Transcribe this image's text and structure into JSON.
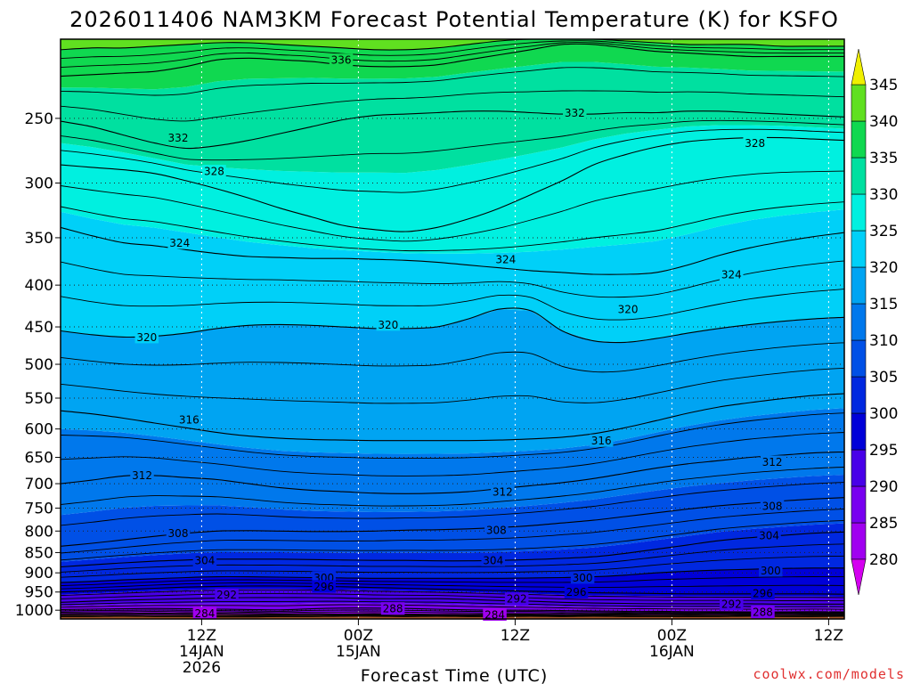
{
  "chart_data": {
    "type": "heatmap",
    "title": "2026011406 NAM3KM Forecast Potential Temperature (K) for KSFO",
    "xlabel": "Forecast Time (UTC)",
    "ylabel": "",
    "x_range_hours": [
      -3,
      47
    ],
    "y_scale": "log",
    "y_range": [
      200,
      1025
    ],
    "y_ticks": [
      250,
      300,
      350,
      400,
      450,
      500,
      550,
      600,
      650,
      700,
      750,
      800,
      850,
      900,
      950,
      1000
    ],
    "y_tick_labels": [
      "250",
      "300",
      "350",
      "400",
      "450",
      "500",
      "550",
      "600",
      "650",
      "700",
      "750",
      "800",
      "850",
      "900",
      "950",
      "1000"
    ],
    "x_ticks": [
      {
        "hour": 6,
        "lines": [
          "12Z",
          "14JAN",
          "2026"
        ]
      },
      {
        "hour": 16,
        "lines": [
          "00Z",
          "15JAN"
        ]
      },
      {
        "hour": 26,
        "lines": [
          "12Z"
        ]
      },
      {
        "hour": 36,
        "lines": [
          "00Z",
          "16JAN"
        ]
      },
      {
        "hour": 46,
        "lines": [
          "12Z"
        ]
      }
    ],
    "vertical_gridlines_hours": [
      6,
      16,
      26,
      36,
      46
    ],
    "grid": true,
    "colorbar": {
      "levels": [
        280,
        285,
        290,
        295,
        300,
        305,
        310,
        315,
        320,
        325,
        330,
        335,
        340,
        345
      ],
      "labels": [
        "280",
        "285",
        "290",
        "295",
        "300",
        "305",
        "310",
        "315",
        "320",
        "325",
        "330",
        "335",
        "340",
        "345"
      ],
      "colors": [
        "#d400f0",
        "#a000f0",
        "#7800f0",
        "#4800e8",
        "#0000d8",
        "#0028e0",
        "#0050e6",
        "#0078ec",
        "#00a4f2",
        "#00d0f8",
        "#00f0e0",
        "#00e0a0",
        "#10d850",
        "#60e020",
        "#a8f000",
        "#f0f000"
      ]
    },
    "contour_interval": 4,
    "contour_labels": [
      {
        "value": 336,
        "hour": 14.9,
        "p": 212
      },
      {
        "value": 332,
        "hour": 4.5,
        "p": 264
      },
      {
        "value": 332,
        "hour": 29.8,
        "p": 246
      },
      {
        "value": 328,
        "hour": 6.8,
        "p": 290
      },
      {
        "value": 328,
        "hour": 41.3,
        "p": 268
      },
      {
        "value": 324,
        "hour": 4.6,
        "p": 355
      },
      {
        "value": 324,
        "hour": 25.4,
        "p": 372
      },
      {
        "value": 324,
        "hour": 39.8,
        "p": 388
      },
      {
        "value": 320,
        "hour": 2.5,
        "p": 463
      },
      {
        "value": 320,
        "hour": 17.9,
        "p": 447
      },
      {
        "value": 320,
        "hour": 33.2,
        "p": 428
      },
      {
        "value": 316,
        "hour": 5.2,
        "p": 584
      },
      {
        "value": 316,
        "hour": 31.5,
        "p": 620
      },
      {
        "value": 312,
        "hour": 2.2,
        "p": 683
      },
      {
        "value": 312,
        "hour": 42.4,
        "p": 658
      },
      {
        "value": 312,
        "hour": 25.2,
        "p": 716
      },
      {
        "value": 308,
        "hour": 4.5,
        "p": 805
      },
      {
        "value": 308,
        "hour": 24.8,
        "p": 797
      },
      {
        "value": 308,
        "hour": 42.4,
        "p": 745
      },
      {
        "value": 304,
        "hour": 6.2,
        "p": 868
      },
      {
        "value": 304,
        "hour": 24.6,
        "p": 868
      },
      {
        "value": 304,
        "hour": 42.2,
        "p": 810
      },
      {
        "value": 300,
        "hour": 13.8,
        "p": 912
      },
      {
        "value": 300,
        "hour": 30.3,
        "p": 912
      },
      {
        "value": 300,
        "hour": 42.3,
        "p": 894
      },
      {
        "value": 296,
        "hour": 13.8,
        "p": 935
      },
      {
        "value": 296,
        "hour": 29.9,
        "p": 950
      },
      {
        "value": 296,
        "hour": 41.8,
        "p": 953
      },
      {
        "value": 292,
        "hour": 7.6,
        "p": 957
      },
      {
        "value": 292,
        "hour": 26.1,
        "p": 968
      },
      {
        "value": 292,
        "hour": 39.8,
        "p": 982
      },
      {
        "value": 288,
        "hour": 18.2,
        "p": 995
      },
      {
        "value": 288,
        "hour": 41.8,
        "p": 1005
      },
      {
        "value": 284,
        "hour": 6.2,
        "p": 1008
      },
      {
        "value": 284,
        "hour": 24.7,
        "p": 1012
      }
    ],
    "isentropes": [
      {
        "value": 280,
        "p": [
          1018,
          1018,
          1017,
          1018,
          1018,
          1019,
          1019,
          1018,
          1018,
          1017,
          1017,
          1018,
          1017,
          1018,
          1018,
          1017,
          1018,
          1017,
          1018,
          1018,
          1018,
          1018,
          1017,
          1018,
          1018,
          1017
        ]
      },
      {
        "value": 284,
        "p": [
          1010,
          1009,
          1009,
          1008,
          1009,
          1009,
          1010,
          1011,
          1010,
          1011,
          1010,
          1011,
          1012,
          1012,
          1011,
          1011,
          1012,
          1011,
          1011,
          1010,
          1011,
          1010,
          1011,
          1010,
          1011,
          1011
        ]
      },
      {
        "value": 288,
        "p": [
          998,
          997,
          996,
          995,
          996,
          997,
          998,
          999,
          996,
          994,
          994,
          995,
          997,
          999,
          1000,
          1000,
          1001,
          1002,
          1003,
          1003,
          1004,
          1004,
          1005,
          1005,
          1004,
          1005
        ]
      },
      {
        "value": 292,
        "p": [
          978,
          975,
          972,
          970,
          968,
          966,
          965,
          965,
          965,
          966,
          968,
          968,
          968,
          970,
          973,
          975,
          978,
          980,
          981,
          982,
          982,
          982,
          982,
          983,
          983,
          983
        ]
      },
      {
        "value": 296,
        "p": [
          950,
          947,
          944,
          940,
          937,
          935,
          934,
          934,
          935,
          936,
          938,
          940,
          942,
          944,
          946,
          948,
          950,
          952,
          953,
          954,
          955,
          955,
          955,
          955,
          955,
          956
        ]
      },
      {
        "value": 300,
        "p": [
          925,
          922,
          918,
          915,
          912,
          910,
          910,
          911,
          912,
          913,
          914,
          914,
          914,
          914,
          914,
          913,
          912,
          910,
          906,
          900,
          896,
          893,
          891,
          889,
          888,
          888
        ]
      },
      {
        "value": 304,
        "p": [
          885,
          880,
          875,
          871,
          868,
          866,
          866,
          866,
          867,
          868,
          869,
          869,
          870,
          870,
          869,
          867,
          864,
          860,
          852,
          842,
          832,
          822,
          815,
          810,
          805,
          802
        ]
      },
      {
        "value": 308,
        "p": [
          835,
          828,
          820,
          812,
          805,
          800,
          799,
          800,
          801,
          801,
          800,
          798,
          797,
          795,
          792,
          788,
          782,
          776,
          768,
          760,
          752,
          745,
          740,
          735,
          731,
          728
        ]
      },
      {
        "value": 312,
        "p": [
          700,
          693,
          685,
          684,
          688,
          692,
          700,
          708,
          713,
          716,
          719,
          720,
          719,
          716,
          710,
          704,
          698,
          690,
          680,
          670,
          662,
          656,
          650,
          646,
          642,
          640
        ]
      },
      {
        "value": 316,
        "p": [
          570,
          575,
          582,
          590,
          598,
          606,
          612,
          616,
          618,
          619,
          620,
          620,
          620,
          620,
          619,
          617,
          614,
          608,
          598,
          586,
          574,
          564,
          557,
          551,
          546,
          543
        ]
      },
      {
        "value": 320,
        "p": [
          455,
          460,
          463,
          462,
          458,
          452,
          448,
          447,
          448,
          450,
          452,
          452,
          450,
          440,
          428,
          430,
          455,
          468,
          470,
          465,
          458,
          452,
          447,
          443,
          440,
          438
        ]
      },
      {
        "value": 324,
        "p": [
          340,
          348,
          355,
          358,
          362,
          366,
          369,
          370,
          371,
          371,
          372,
          373,
          375,
          378,
          381,
          384,
          386,
          388,
          388,
          386,
          378,
          368,
          360,
          354,
          349,
          345
        ]
      },
      {
        "value": 328,
        "p": [
          285,
          287,
          289,
          292,
          298,
          305,
          313,
          322,
          330,
          338,
          342,
          344,
          340,
          332,
          322,
          310,
          298,
          285,
          277,
          271,
          267,
          265,
          264,
          264,
          265,
          266
        ]
      },
      {
        "value": 332,
        "p": [
          252,
          256,
          262,
          268,
          272,
          270,
          266,
          261,
          256,
          251,
          248,
          247,
          246,
          245,
          245,
          246,
          247,
          247,
          246,
          246,
          245,
          245,
          246,
          247,
          248,
          249
        ]
      },
      {
        "value": 336,
        "p": [
          222,
          221,
          220,
          219,
          216,
          212,
          211,
          212,
          213,
          215,
          216,
          216,
          215,
          212,
          209,
          206,
          203,
          203,
          205,
          207,
          208,
          209,
          210,
          210,
          210,
          210
        ]
      },
      {
        "value": 340,
        "p": [
          206,
          205,
          205,
          204,
          203,
          202,
          202,
          203,
          204,
          205,
          206,
          206,
          205,
          203,
          201,
          200,
          200,
          200,
          201,
          202,
          203,
          203,
          203,
          204,
          204,
          204
        ]
      }
    ],
    "surface_color": "#a65628"
  },
  "credit": "coolwx.com/models"
}
